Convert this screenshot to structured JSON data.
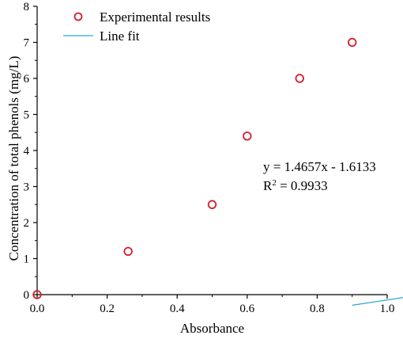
{
  "chart_data": {
    "type": "scatter",
    "title": "",
    "xlabel": "Absorbance",
    "ylabel": "Concentration of total phenols (mg/L)",
    "xlim": [
      0.0,
      1.0
    ],
    "ylim": [
      0,
      8
    ],
    "x_ticks": [
      "0.0",
      "0.2",
      "0.4",
      "0.6",
      "0.8",
      "1.0"
    ],
    "y_ticks": [
      "0",
      "1",
      "2",
      "3",
      "4",
      "5",
      "6",
      "7",
      "8"
    ],
    "grid": false,
    "legend_position": "top-left",
    "series": [
      {
        "name": "Experimental results",
        "kind": "scatter",
        "marker": "open-circle",
        "color": "#d11f2f",
        "x": [
          0.0,
          0.26,
          0.5,
          0.6,
          0.75,
          0.9
        ],
        "y": [
          0.0,
          1.2,
          2.5,
          4.4,
          6.0,
          7.0
        ]
      },
      {
        "name": "Line fit",
        "kind": "line",
        "color": "#2aa6d6",
        "slope": 1.4657,
        "intercept": -1.6133,
        "x_range": [
          0.0,
          0.9
        ]
      }
    ],
    "annotations": {
      "equation": "y = 1.4657x - 1.6133",
      "r2_prefix": "R",
      "r2_sup": "2",
      "r2_value": " = 0.9933"
    }
  }
}
